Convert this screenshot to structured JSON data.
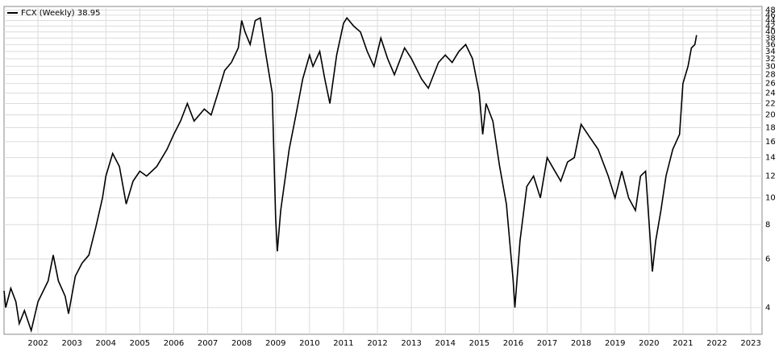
{
  "chart_data": {
    "type": "line",
    "log_scale": true,
    "grid": true,
    "legend": "top-left",
    "xlim": [
      2001.0,
      2023.33
    ],
    "xticks": [
      2002,
      2003,
      2004,
      2005,
      2006,
      2007,
      2008,
      2009,
      2010,
      2011,
      2012,
      2013,
      2014,
      2015,
      2016,
      2017,
      2018,
      2019,
      2020,
      2021,
      2022,
      2023
    ],
    "ylim": [
      3.2,
      49.5
    ],
    "yticks": [
      4,
      6,
      8,
      10,
      12,
      14,
      16,
      18,
      20,
      22,
      24,
      26,
      28,
      30,
      32,
      34,
      36,
      38,
      40,
      42,
      44,
      46,
      48
    ],
    "x": [
      2001.0,
      2001.05,
      2001.2,
      2001.35,
      2001.45,
      2001.6,
      2001.8,
      2002.0,
      2002.3,
      2002.45,
      2002.6,
      2002.8,
      2002.9,
      2003.1,
      2003.3,
      2003.5,
      2003.7,
      2003.9,
      2004.0,
      2004.2,
      2004.4,
      2004.6,
      2004.8,
      2005.0,
      2005.2,
      2005.5,
      2005.8,
      2006.0,
      2006.2,
      2006.4,
      2006.6,
      2006.9,
      2007.1,
      2007.3,
      2007.5,
      2007.7,
      2007.9,
      2008.0,
      2008.1,
      2008.25,
      2008.4,
      2008.55,
      2008.7,
      2008.9,
      2009.0,
      2009.05,
      2009.15,
      2009.4,
      2009.6,
      2009.8,
      2010.0,
      2010.1,
      2010.3,
      2010.45,
      2010.6,
      2010.8,
      2011.0,
      2011.1,
      2011.3,
      2011.5,
      2011.7,
      2011.9,
      2012.1,
      2012.3,
      2012.5,
      2012.8,
      2013.0,
      2013.3,
      2013.5,
      2013.8,
      2014.0,
      2014.2,
      2014.4,
      2014.6,
      2014.8,
      2015.0,
      2015.1,
      2015.2,
      2015.4,
      2015.6,
      2015.8,
      2016.0,
      2016.05,
      2016.2,
      2016.4,
      2016.6,
      2016.8,
      2017.0,
      2017.15,
      2017.4,
      2017.6,
      2017.8,
      2018.0,
      2018.2,
      2018.5,
      2018.8,
      2019.0,
      2019.2,
      2019.4,
      2019.6,
      2019.75,
      2019.9,
      2020.1,
      2020.2,
      2020.35,
      2020.5,
      2020.7,
      2020.9,
      2021.0,
      2021.15,
      2021.25,
      2021.35,
      2021.4
    ],
    "series": [
      {
        "name": "FCX (Weekly) 38.95",
        "color": "#000000",
        "values": [
          4.6,
          4.0,
          4.7,
          4.2,
          3.5,
          3.9,
          3.3,
          4.2,
          5.0,
          6.2,
          5.0,
          4.4,
          3.8,
          5.2,
          5.8,
          6.2,
          7.8,
          10,
          12,
          14.5,
          13,
          9.5,
          11.5,
          12.5,
          12,
          13,
          15,
          17,
          19,
          22,
          19,
          21,
          20,
          24,
          29,
          31,
          35,
          44,
          40,
          36,
          44,
          45,
          34,
          24,
          8.5,
          6.4,
          9,
          15,
          20,
          27,
          33,
          30,
          34,
          27,
          22,
          33,
          43,
          45,
          42,
          40,
          34,
          30,
          38,
          32,
          28,
          35,
          32,
          27,
          25,
          31,
          33,
          31,
          34,
          36,
          32,
          24,
          17,
          22,
          19,
          13,
          9.5,
          5.0,
          4.0,
          7,
          11,
          12,
          10,
          14,
          13,
          11.5,
          13.5,
          14,
          18.5,
          17,
          15,
          12,
          10,
          12.5,
          10,
          9,
          12,
          12.5,
          5.4,
          7,
          9,
          12,
          15,
          17,
          26,
          30,
          35,
          36,
          38.95
        ]
      }
    ]
  }
}
